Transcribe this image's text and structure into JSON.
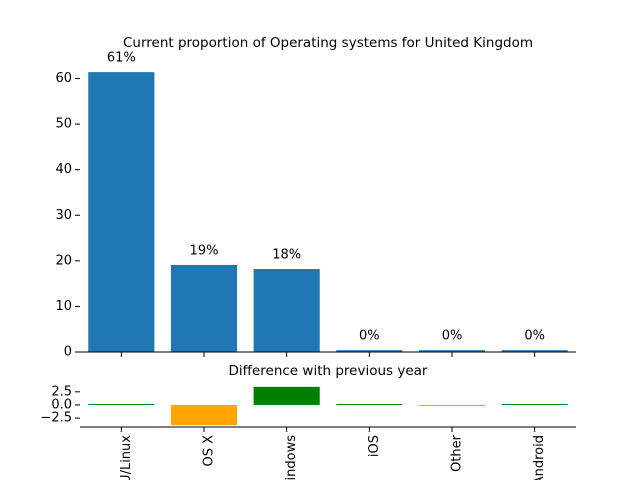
{
  "chart_data": [
    {
      "type": "bar",
      "title": "Current proportion of Operating systems for United Kingdom",
      "values": [
        61.4,
        19.1,
        18.2,
        0.4,
        0.4,
        0.4
      ],
      "value_labels": [
        "61%",
        "19%",
        "18%",
        "0%",
        "0%",
        "0%"
      ],
      "color": "#1f77b4",
      "ylim": [
        0,
        64.5
      ],
      "yticks": [
        0,
        10,
        20,
        30,
        40,
        50,
        60
      ]
    },
    {
      "type": "bar",
      "title": "Difference with previous year",
      "categories": [
        "GNU/Linux",
        "OS X",
        "Windows",
        "iOS",
        "Other",
        "Android"
      ],
      "values": [
        0.1,
        -3.85,
        3.45,
        0,
        -0.2,
        0
      ],
      "colors": [
        "green",
        "orange",
        "green",
        "green",
        "orange",
        "green"
      ],
      "ylim": [
        -4.2,
        3.8
      ],
      "yticks": [
        {
          "value": -2.5,
          "label": "−2.5"
        },
        {
          "value": 0,
          "label": "0.0"
        },
        {
          "value": 2.5,
          "label": "2.5"
        }
      ]
    }
  ]
}
